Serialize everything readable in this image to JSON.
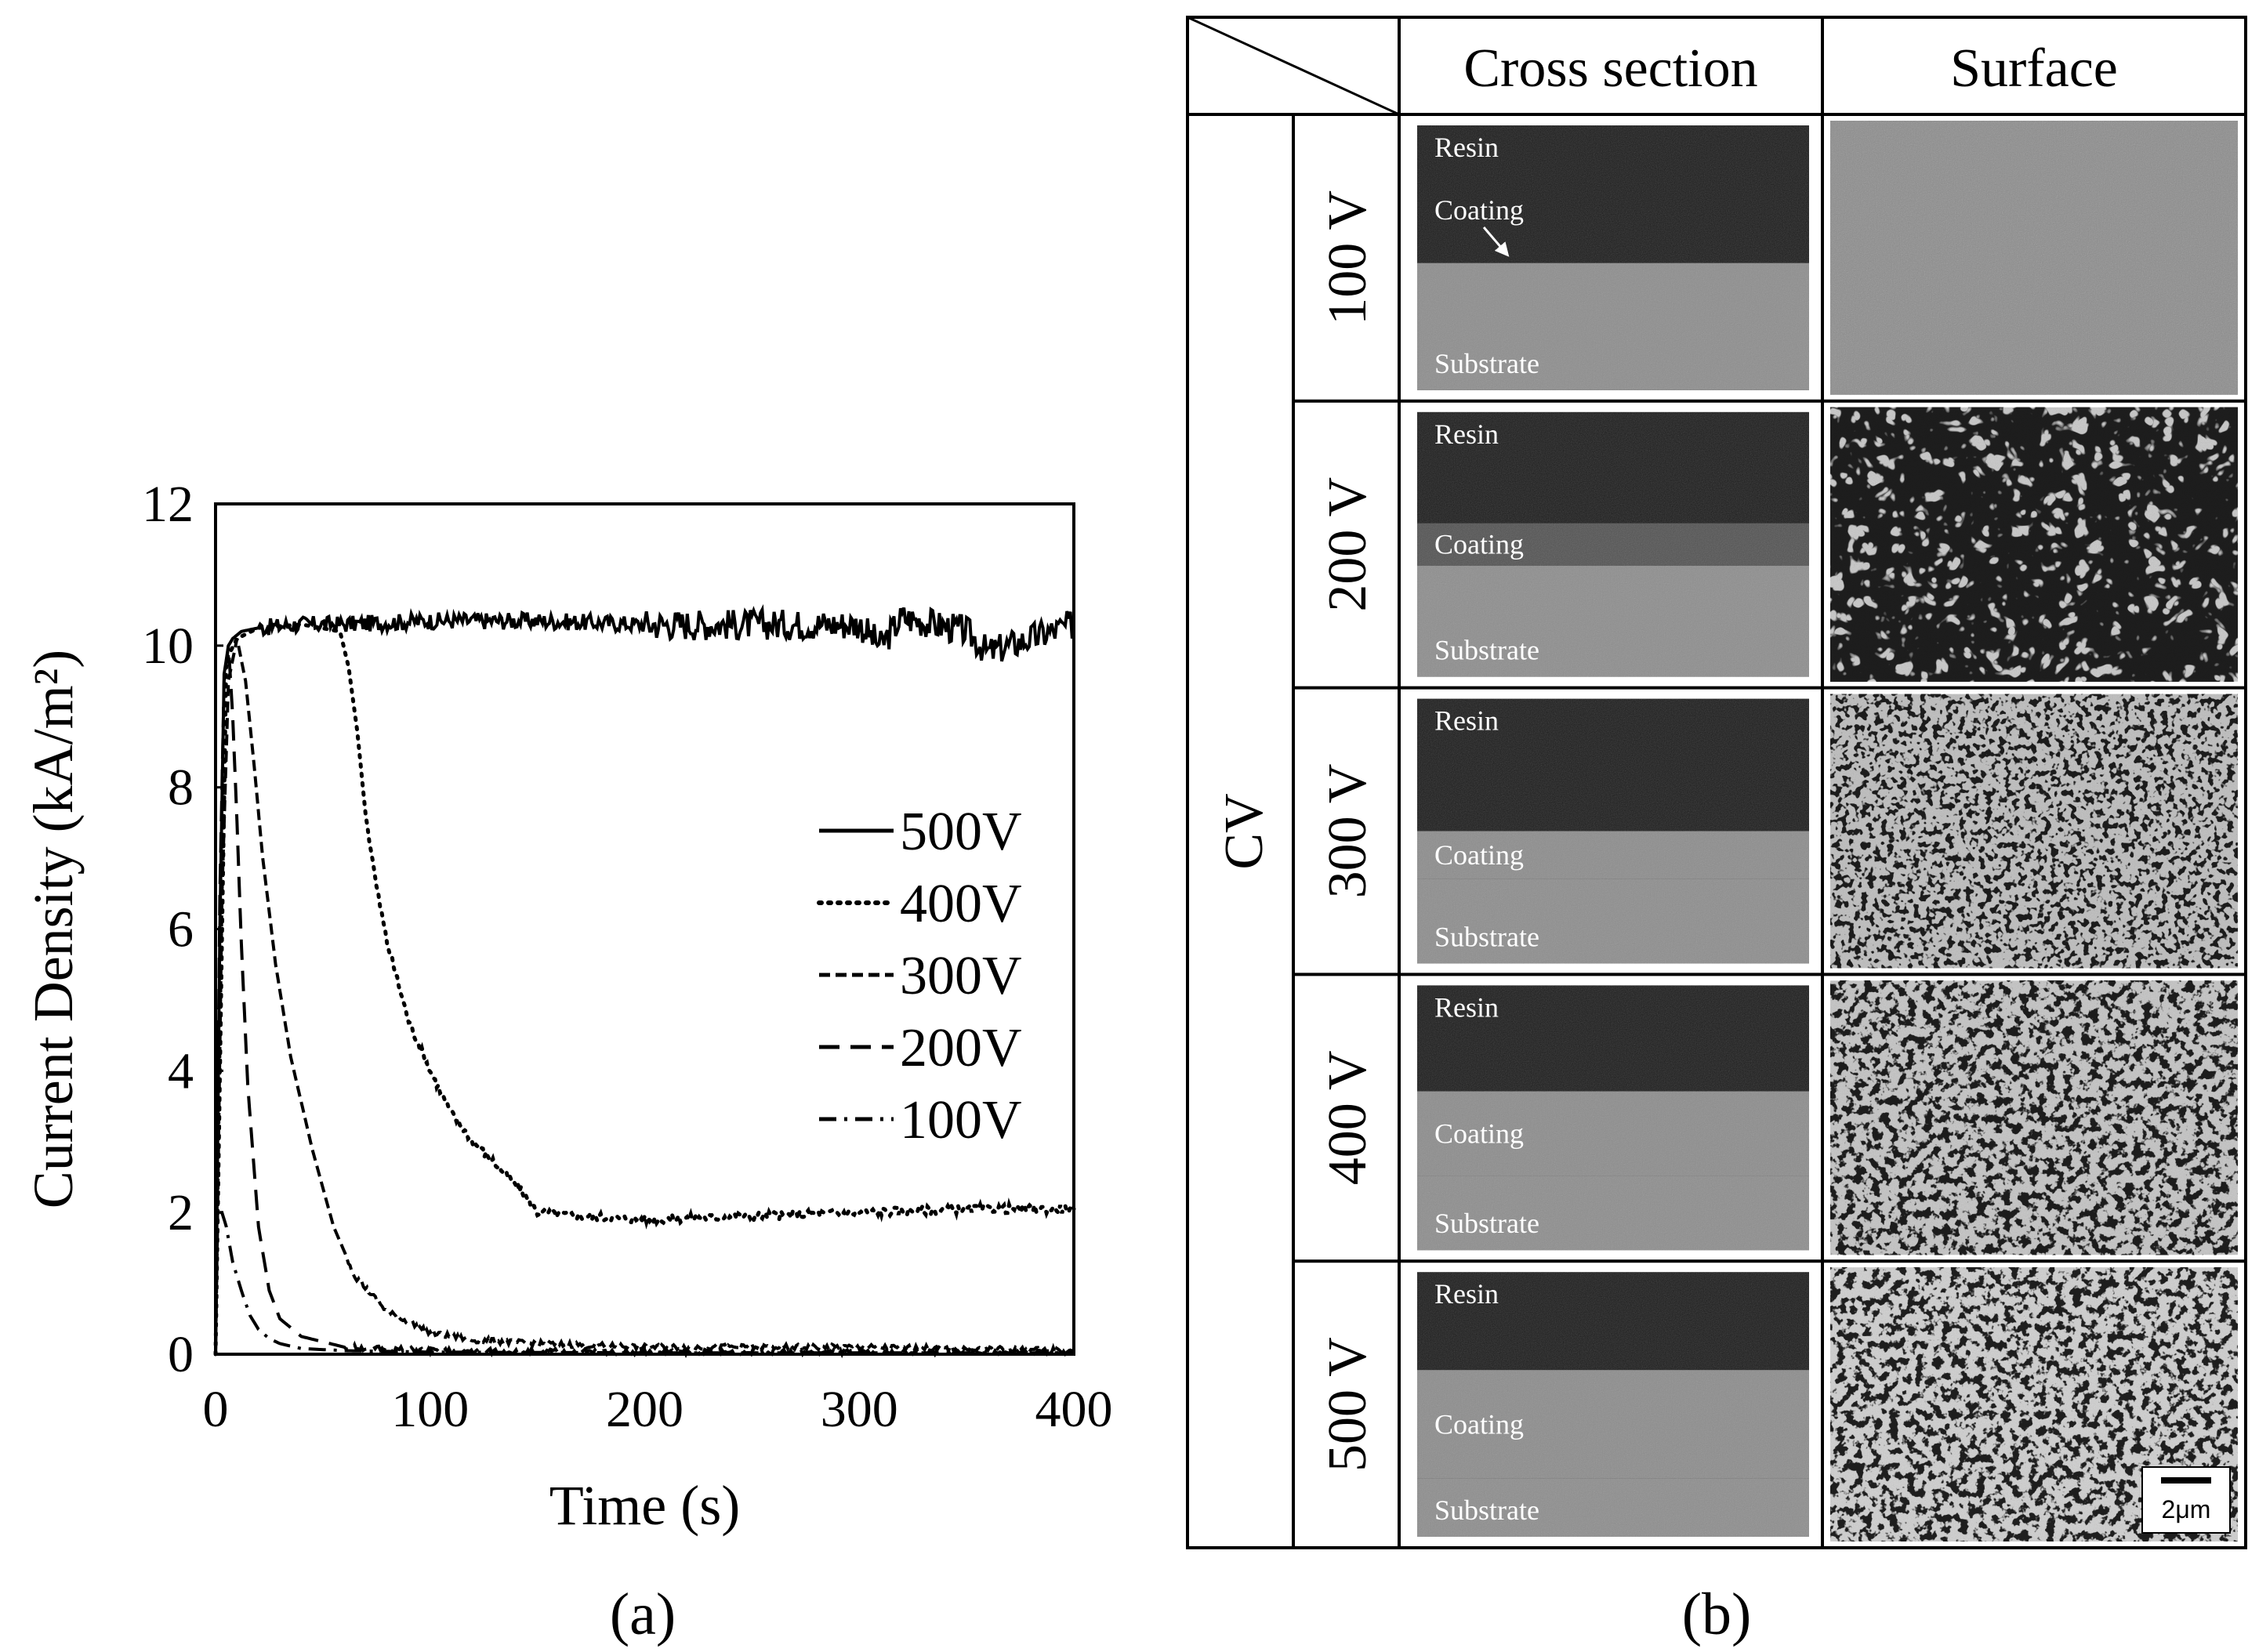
{
  "chart_data": {
    "type": "line",
    "panel_label": "(a)",
    "xlabel": "Time (s)",
    "ylabel": "Current Density (kA/m²)",
    "xlim": [
      0,
      400
    ],
    "ylim": [
      0,
      12
    ],
    "xticks": [
      "0",
      "100",
      "200",
      "300",
      "400"
    ],
    "yticks": [
      "0",
      "2",
      "4",
      "6",
      "8",
      "10",
      "12"
    ],
    "grid": false,
    "legend_position": "right",
    "series": [
      {
        "name": "500V",
        "dash": "solid",
        "x": [
          0,
          2,
          4,
          6,
          8,
          12,
          20,
          40,
          60,
          100,
          150,
          200,
          250,
          300,
          310,
          320,
          350,
          360,
          400
        ],
        "y": [
          0,
          6,
          9.6,
          10,
          10.1,
          10.2,
          10.25,
          10.3,
          10.3,
          10.35,
          10.35,
          10.3,
          10.3,
          10.3,
          10.0,
          10.4,
          10.2,
          9.9,
          10.3
        ]
      },
      {
        "name": "400V",
        "dash": "dotted",
        "x": [
          0,
          5,
          10,
          20,
          40,
          58,
          62,
          66,
          70,
          75,
          80,
          90,
          100,
          110,
          120,
          130,
          140,
          150,
          170,
          200,
          250,
          300,
          350,
          400
        ],
        "y": [
          0,
          9.8,
          10.1,
          10.25,
          10.3,
          10.2,
          9.7,
          8.8,
          7.6,
          6.6,
          5.8,
          4.7,
          4.0,
          3.4,
          3.0,
          2.7,
          2.4,
          2.0,
          1.95,
          1.9,
          1.95,
          2.0,
          2.05,
          2.05
        ]
      },
      {
        "name": "300V",
        "dash": "short-dash",
        "x": [
          0,
          3,
          6,
          10,
          14,
          18,
          22,
          28,
          35,
          45,
          55,
          65,
          80,
          100,
          120,
          150,
          200,
          250,
          300,
          400
        ],
        "y": [
          0,
          6.5,
          9.5,
          10.1,
          9.5,
          8.3,
          7.0,
          5.5,
          4.2,
          2.9,
          1.8,
          1.1,
          0.6,
          0.3,
          0.2,
          0.15,
          0.1,
          0.1,
          0.1,
          0.05
        ]
      },
      {
        "name": "200V",
        "dash": "long-dash",
        "x": [
          0,
          2,
          4,
          6,
          8,
          10,
          12,
          15,
          20,
          25,
          30,
          40,
          60,
          100,
          200,
          400
        ],
        "y": [
          0,
          6.5,
          9.5,
          10.0,
          9.0,
          7.5,
          5.8,
          3.8,
          1.8,
          0.9,
          0.5,
          0.25,
          0.1,
          0.05,
          0.03,
          0.02
        ]
      },
      {
        "name": "100V",
        "dash": "dash-dot",
        "x": [
          0,
          1,
          3,
          5,
          8,
          12,
          16,
          20,
          25,
          30,
          40,
          60,
          100,
          200,
          400
        ],
        "y": [
          0,
          2.0,
          2.0,
          1.8,
          1.3,
          0.9,
          0.55,
          0.35,
          0.22,
          0.15,
          0.08,
          0.05,
          0.03,
          0.02,
          0.02
        ]
      }
    ]
  },
  "figure_b": {
    "panel_label": "(b)",
    "column_headers": [
      "Cross section",
      "Surface"
    ],
    "group_label": "CV",
    "rows": [
      {
        "label": "100 V",
        "layers": [
          "Resin",
          "Coating",
          "Substrate"
        ]
      },
      {
        "label": "200 V",
        "layers": [
          "Resin",
          "Coating",
          "Substrate"
        ]
      },
      {
        "label": "300 V",
        "layers": [
          "Resin",
          "Coating",
          "Substrate"
        ]
      },
      {
        "label": "400 V",
        "layers": [
          "Resin",
          "Coating",
          "Substrate"
        ]
      },
      {
        "label": "500 V",
        "layers": [
          "Resin",
          "Coating",
          "Substrate"
        ]
      }
    ],
    "scale_bar": "2μm"
  }
}
